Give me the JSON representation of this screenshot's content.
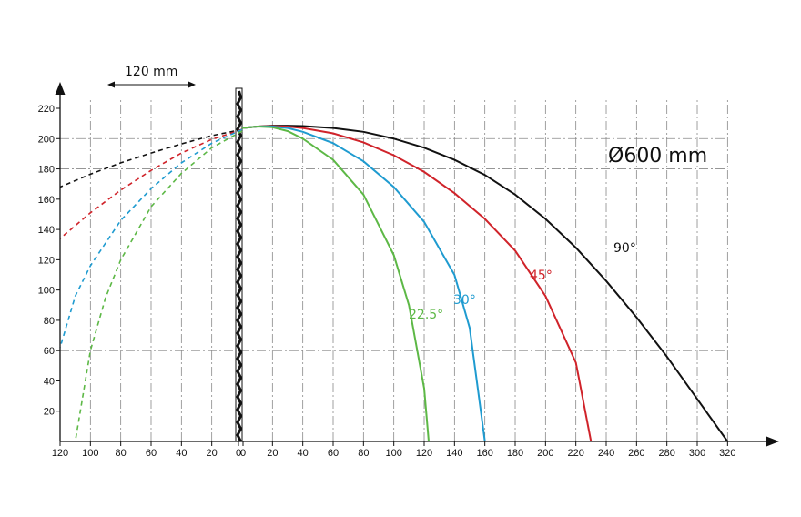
{
  "chart_data": {
    "type": "line",
    "title": "",
    "diameter_label": "Ø600 mm",
    "dimension_label": "120 mm",
    "x_ticks_left": [
      "120",
      "100",
      "80",
      "60",
      "40",
      "20",
      "0"
    ],
    "x_ticks_right": [
      "0",
      "20",
      "40",
      "60",
      "80",
      "100",
      "120",
      "140",
      "160",
      "180",
      "200",
      "220",
      "240",
      "260",
      "280",
      "300",
      "320"
    ],
    "y_ticks": [
      "20",
      "40",
      "60",
      "80",
      "100",
      "120",
      "140",
      "160",
      "180",
      "200",
      "220"
    ],
    "ylim": [
      0,
      220
    ],
    "xlim_right": [
      0,
      320
    ],
    "xlim_left": [
      0,
      120
    ],
    "grid": true,
    "colors": {
      "s90": "#111111",
      "s45": "#d0232a",
      "s30": "#1f9bd0",
      "s22": "#5db846",
      "grid": "#888888"
    },
    "series": [
      {
        "name": "90°",
        "color_key": "s90",
        "solid": [
          [
            0,
            207
          ],
          [
            10,
            208
          ],
          [
            20,
            208.5
          ],
          [
            30,
            208.5
          ],
          [
            40,
            208.3
          ],
          [
            60,
            207
          ],
          [
            80,
            204.5
          ],
          [
            100,
            200
          ],
          [
            120,
            194
          ],
          [
            140,
            186
          ],
          [
            160,
            176
          ],
          [
            180,
            163
          ],
          [
            200,
            147
          ],
          [
            220,
            128
          ],
          [
            240,
            106
          ],
          [
            260,
            82
          ],
          [
            280,
            56
          ],
          [
            300,
            28
          ],
          [
            320,
            0
          ]
        ],
        "dashed": [
          [
            0,
            206
          ],
          [
            -20,
            202
          ],
          [
            -40,
            196.5
          ],
          [
            -60,
            190.5
          ],
          [
            -80,
            184
          ],
          [
            -100,
            176.5
          ],
          [
            -120,
            168
          ]
        ]
      },
      {
        "name": "45°",
        "color_key": "s45",
        "solid": [
          [
            0,
            207
          ],
          [
            10,
            208
          ],
          [
            20,
            208.2
          ],
          [
            30,
            208
          ],
          [
            40,
            207
          ],
          [
            60,
            203.5
          ],
          [
            80,
            197.5
          ],
          [
            100,
            189
          ],
          [
            120,
            178
          ],
          [
            140,
            164
          ],
          [
            160,
            147
          ],
          [
            180,
            126
          ],
          [
            200,
            96
          ],
          [
            220,
            52
          ],
          [
            230,
            0
          ]
        ],
        "dashed": [
          [
            0,
            206
          ],
          [
            -20,
            199.5
          ],
          [
            -40,
            190.5
          ],
          [
            -60,
            179
          ],
          [
            -80,
            166
          ],
          [
            -100,
            151
          ],
          [
            -120,
            134
          ]
        ]
      },
      {
        "name": "30°",
        "color_key": "s30",
        "solid": [
          [
            0,
            207
          ],
          [
            10,
            208
          ],
          [
            20,
            208
          ],
          [
            30,
            207
          ],
          [
            40,
            204.5
          ],
          [
            60,
            197
          ],
          [
            80,
            185
          ],
          [
            100,
            168
          ],
          [
            120,
            145
          ],
          [
            140,
            110
          ],
          [
            150,
            75
          ],
          [
            160,
            0
          ]
        ],
        "dashed": [
          [
            0,
            206
          ],
          [
            -20,
            197
          ],
          [
            -40,
            184
          ],
          [
            -60,
            167
          ],
          [
            -80,
            146
          ],
          [
            -100,
            116
          ],
          [
            -110,
            96
          ],
          [
            -120,
            62
          ]
        ]
      },
      {
        "name": "22.5°",
        "color_key": "s22",
        "solid": [
          [
            0,
            207
          ],
          [
            10,
            208
          ],
          [
            20,
            207.5
          ],
          [
            30,
            205
          ],
          [
            40,
            200
          ],
          [
            60,
            186
          ],
          [
            80,
            163
          ],
          [
            100,
            123
          ],
          [
            110,
            90
          ],
          [
            120,
            35
          ],
          [
            123,
            0
          ]
        ],
        "dashed": [
          [
            0,
            205
          ],
          [
            -20,
            194
          ],
          [
            -40,
            177
          ],
          [
            -60,
            155
          ],
          [
            -80,
            120
          ],
          [
            -90,
            95
          ],
          [
            -100,
            60
          ],
          [
            -110,
            0
          ]
        ]
      }
    ]
  }
}
